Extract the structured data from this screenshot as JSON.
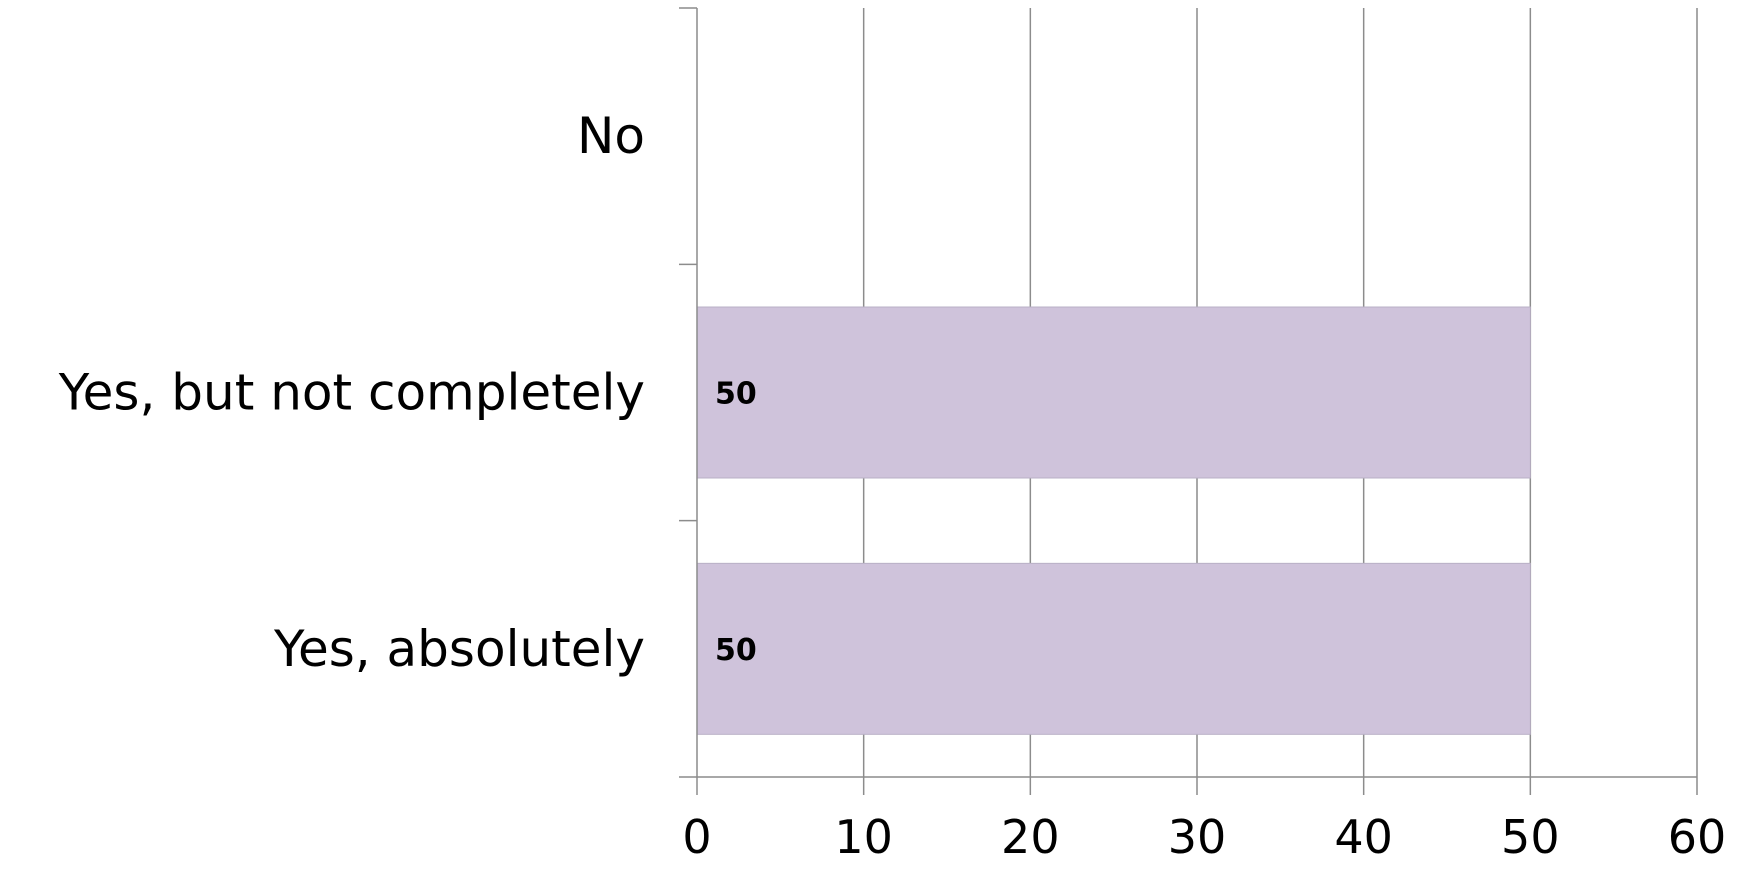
{
  "chart_data": {
    "type": "bar",
    "orientation": "horizontal",
    "categories": [
      "No",
      "Yes, but not completely",
      "Yes, absolutely"
    ],
    "values": [
      0,
      50,
      50
    ],
    "data_labels": [
      "",
      "50",
      "50"
    ],
    "xlim": [
      0,
      60
    ],
    "x_ticks": [
      "0",
      "10",
      "20",
      "30",
      "40",
      "50",
      "60"
    ],
    "grid": "vertical",
    "bar_color": "#cfc3db",
    "title": "",
    "xlabel": "",
    "ylabel": ""
  }
}
